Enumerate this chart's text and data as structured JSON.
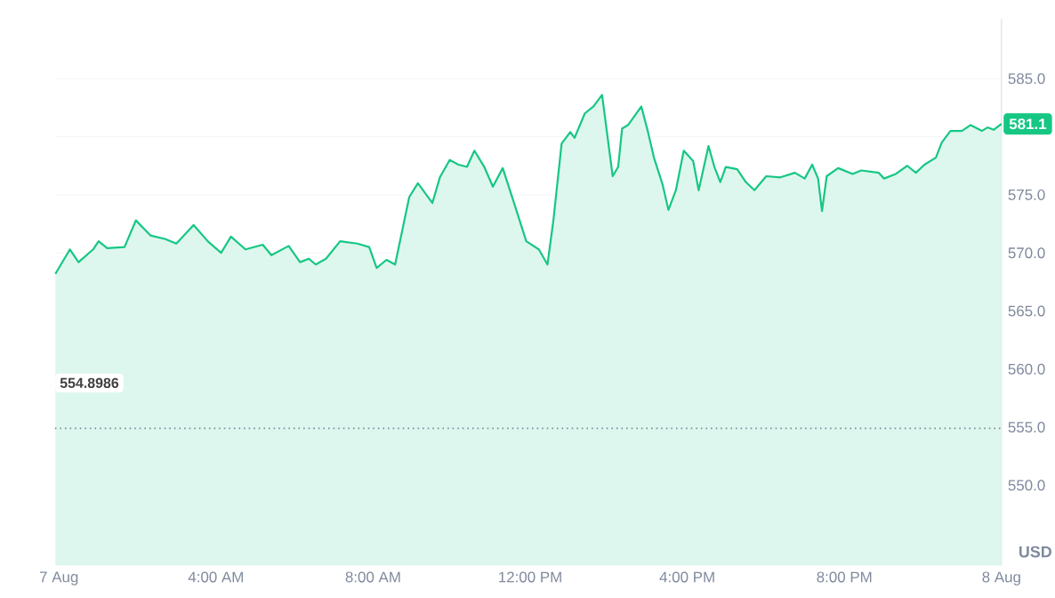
{
  "chart_data": {
    "type": "area",
    "ylabel": "USD",
    "xlim": [
      -0.1,
      24
    ],
    "ylim": [
      543.1,
      590.1
    ],
    "xticks": [
      {
        "value": 0,
        "label": "7 Aug"
      },
      {
        "value": 4,
        "label": "4:00 AM"
      },
      {
        "value": 8,
        "label": "8:00 AM"
      },
      {
        "value": 12,
        "label": "12:00 PM"
      },
      {
        "value": 16,
        "label": "4:00 PM"
      },
      {
        "value": 20,
        "label": "8:00 PM"
      },
      {
        "value": 24,
        "label": "8 Aug"
      }
    ],
    "yticks": [
      {
        "value": 550,
        "label": "550.0"
      },
      {
        "value": 555,
        "label": "555.0"
      },
      {
        "value": 560,
        "label": "560.0"
      },
      {
        "value": 565,
        "label": "565.0"
      },
      {
        "value": 570,
        "label": "570.0"
      },
      {
        "value": 575,
        "label": "575.0"
      },
      {
        "value": 580,
        "label": null
      },
      {
        "value": 585,
        "label": "585.0"
      }
    ],
    "grid": "y",
    "x": [
      -0.09,
      0.28,
      0.5,
      0.87,
      1.01,
      1.23,
      1.67,
      1.96,
      2.33,
      2.7,
      2.99,
      3.43,
      3.79,
      4.13,
      4.38,
      4.75,
      5.19,
      5.41,
      5.85,
      6.14,
      6.36,
      6.54,
      6.8,
      7.16,
      7.6,
      7.9,
      8.09,
      8.34,
      8.56,
      8.92,
      9.14,
      9.51,
      9.7,
      9.95,
      10.17,
      10.39,
      10.58,
      10.83,
      11.05,
      11.3,
      11.56,
      11.9,
      12.22,
      12.44,
      12.59,
      12.8,
      13.02,
      13.13,
      13.39,
      13.61,
      13.83,
      14.1,
      14.24,
      14.34,
      14.49,
      14.64,
      14.83,
      15.0,
      15.15,
      15.37,
      15.52,
      15.71,
      15.91,
      16.15,
      16.29,
      16.54,
      16.69,
      16.84,
      16.98,
      17.27,
      17.49,
      17.71,
      18.01,
      18.37,
      18.74,
      18.99,
      19.18,
      19.33,
      19.43,
      19.55,
      19.84,
      20.21,
      20.43,
      20.87,
      21.01,
      21.31,
      21.6,
      21.82,
      22.04,
      22.33,
      22.48,
      22.7,
      22.99,
      23.21,
      23.5,
      23.65,
      23.8,
      24
    ],
    "series": [
      {
        "color": "#16c784",
        "values": [
          568.2,
          570.3,
          569.2,
          570.3,
          571.0,
          570.4,
          570.5,
          572.8,
          571.5,
          571.2,
          570.8,
          572.4,
          571.0,
          570.0,
          571.4,
          570.3,
          570.7,
          569.8,
          570.6,
          569.2,
          569.5,
          569.0,
          569.5,
          571.0,
          570.8,
          570.5,
          568.7,
          569.4,
          569.0,
          574.8,
          576.0,
          574.3,
          576.5,
          578.0,
          577.6,
          577.4,
          578.8,
          577.4,
          575.7,
          577.3,
          574.6,
          571.0,
          570.3,
          569.0,
          572.8,
          579.4,
          580.4,
          579.9,
          582.0,
          582.6,
          583.6,
          576.6,
          577.4,
          580.7,
          581.0,
          581.7,
          582.6,
          580.4,
          578.2,
          575.9,
          573.7,
          575.4,
          578.8,
          577.9,
          575.4,
          579.2,
          577.4,
          576.1,
          577.4,
          577.2,
          576.1,
          575.4,
          576.6,
          576.5,
          576.9,
          576.4,
          577.6,
          576.4,
          573.6,
          576.6,
          577.3,
          576.8,
          577.1,
          576.9,
          576.4,
          576.8,
          577.5,
          576.9,
          577.6,
          578.2,
          579.5,
          580.5,
          580.5,
          581.0,
          580.5,
          580.8,
          580.6,
          581.1
        ]
      }
    ],
    "ref_lines": [
      {
        "axis": "y",
        "value": 554.8986,
        "label": "554.8986",
        "color": "#808a9d",
        "line_style": "dotted"
      }
    ],
    "annotations": [
      {
        "text": "581.1",
        "x": 24,
        "y": 581.1
      }
    ]
  }
}
